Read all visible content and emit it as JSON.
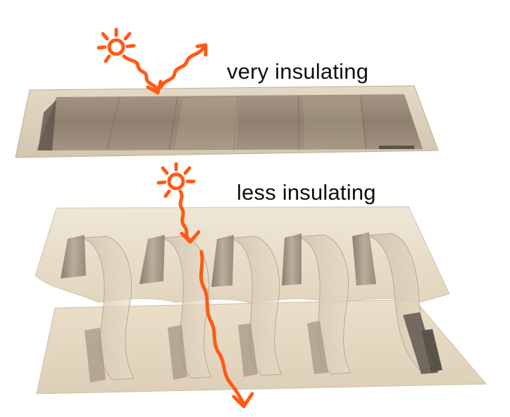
{
  "labels": {
    "top": "very insulating",
    "bottom": "less insulating"
  },
  "icons": {
    "top_sun": "sun-icon",
    "bottom_sun": "sun-icon",
    "reflected_ray": "zigzag-arrow-icon",
    "transmitted_ray": "zigzag-arrow-icon"
  },
  "colors": {
    "ray": "#ff5a14",
    "panel_frame": "#d9cfbe",
    "panel_glass": "#8f8070",
    "panel_tan": "#e8dcc6",
    "background": "#ffffff"
  }
}
